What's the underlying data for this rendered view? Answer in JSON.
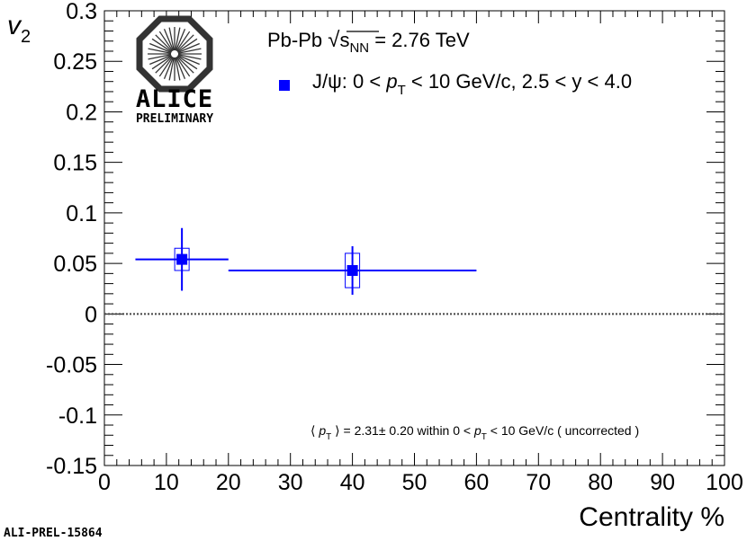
{
  "chart_data": {
    "type": "scatter",
    "title": "",
    "xlabel": "Centrality %",
    "ylabel": "v",
    "ylabel_sub": "2",
    "xlim": [
      0,
      100
    ],
    "ylim": [
      -0.15,
      0.3
    ],
    "x_ticks": [
      0,
      10,
      20,
      30,
      40,
      50,
      60,
      70,
      80,
      90,
      100
    ],
    "y_ticks": [
      -0.15,
      -0.1,
      -0.05,
      0,
      0.05,
      0.1,
      0.15,
      0.2,
      0.25,
      0.3
    ],
    "x_tick_labels": [
      "0",
      "10",
      "20",
      "30",
      "40",
      "50",
      "60",
      "70",
      "80",
      "90",
      "100"
    ],
    "y_tick_labels": [
      "-0.15",
      "-0.1",
      "-0.05",
      "0",
      "0.05",
      "0.1",
      "0.15",
      "0.2",
      "0.25",
      "0.3"
    ],
    "zero_line": 0,
    "series": [
      {
        "name": "J/ψ: 0 < p_T < 10 GeV/c, 2.5 < y < 4.0",
        "color": "#0000ff",
        "points": [
          {
            "x": 12.5,
            "y": 0.054,
            "x_low": 5,
            "x_high": 20,
            "stat_err": 0.031,
            "sys_err": 0.011
          },
          {
            "x": 40,
            "y": 0.043,
            "x_low": 20,
            "x_high": 60,
            "stat_err": 0.024,
            "sys_err": 0.017
          }
        ]
      }
    ]
  },
  "header": {
    "system_prefix": "Pb-Pb ",
    "sqrt_symbol": "√",
    "s_label": "s",
    "nn_sub": "NN",
    "energy_suffix": " = 2.76 TeV"
  },
  "legend": {
    "part1": "J/ψ: 0 < ",
    "p": "p",
    "T": "T",
    "part2": " < 10 GeV/c, 2.5 < y < 4.0"
  },
  "annotation": {
    "open": "⟨ ",
    "p": "p",
    "T": "T",
    "mid": " ⟩ = 2.31",
    "pm": "±",
    "mid2": " 0.20 within 0 < ",
    "p2": "p",
    "T2": "T",
    "end": " < 10 GeV/c ( uncorrected )"
  },
  "logo": {
    "name": "ALICE",
    "subtitle": "PRELIMINARY"
  },
  "footer": {
    "id": "ALI-PREL-15864"
  }
}
